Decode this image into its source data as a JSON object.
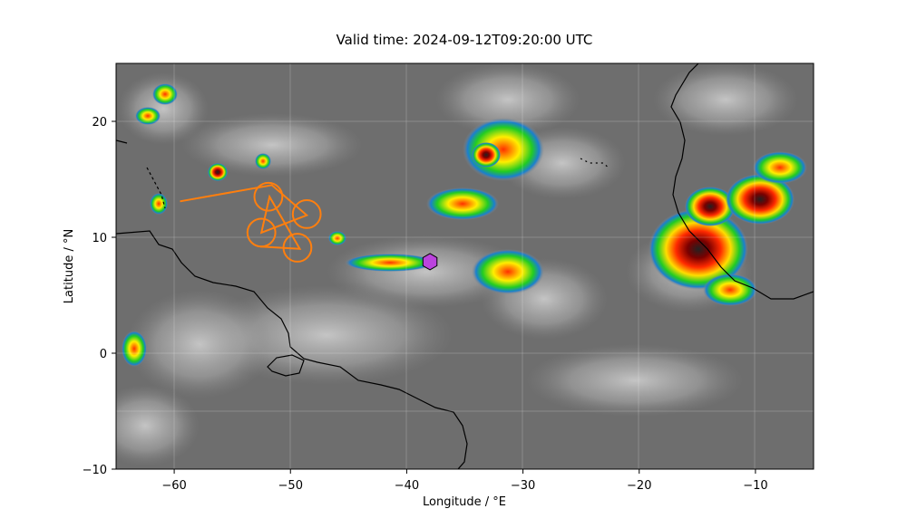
{
  "figure": {
    "title": "Valid time: 2024-09-12T09:20:00 UTC"
  },
  "map": {
    "projection": "PlateCarree",
    "extent_lon": [
      -65,
      -5
    ],
    "extent_lat": [
      -10,
      25
    ],
    "background": "infrared satellite imagery (grayscale with colour-enhanced cold cloud tops)",
    "gridlines": true
  },
  "axes": {
    "xlabel": "Longitude / °E",
    "ylabel": "Latitude / °N",
    "xticks": [
      -60,
      -50,
      -40,
      -30,
      -20,
      -10
    ],
    "yticks": [
      -10,
      0,
      10,
      20
    ],
    "xtick_labels": [
      "−60",
      "−50",
      "−40",
      "−30",
      "−20",
      "−10"
    ],
    "ytick_labels": [
      "−10",
      "0",
      "10",
      "20"
    ]
  },
  "overlays": {
    "track_color": "#ff7f0e",
    "track_points": [
      [
        -59.5,
        13.1
      ],
      [
        -51.6,
        14.5
      ],
      [
        -48.6,
        11.9
      ],
      [
        -52.5,
        10.4
      ],
      [
        -51.8,
        13.5
      ],
      [
        -49.2,
        9.0
      ],
      [
        -52.6,
        9.2
      ]
    ],
    "circles": [
      {
        "lon": -51.9,
        "lat": 13.5,
        "r_deg": 1.2
      },
      {
        "lon": -48.6,
        "lat": 12.0,
        "r_deg": 1.2
      },
      {
        "lon": -52.5,
        "lat": 10.4,
        "r_deg": 1.2
      },
      {
        "lon": -49.4,
        "lat": 9.1,
        "r_deg": 1.2
      }
    ],
    "marker": {
      "shape": "hexagon",
      "lon": -38.0,
      "lat": 7.9,
      "color": "#bb44dd"
    }
  }
}
